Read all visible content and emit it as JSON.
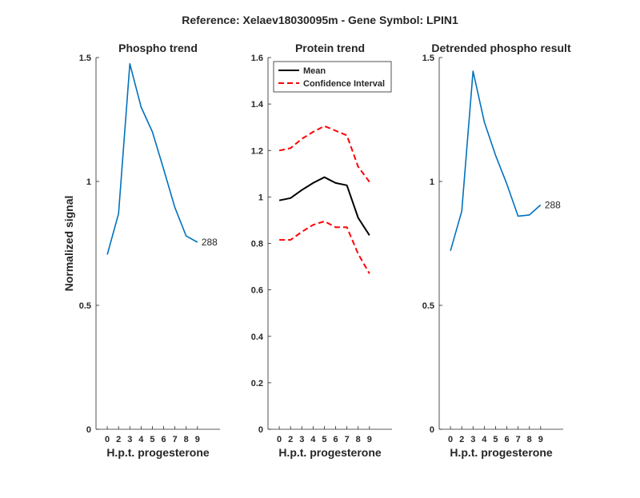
{
  "figure": {
    "title": "Reference:  Xelaev18030095m - Gene Symbol:  LPIN1"
  },
  "chart_data": [
    {
      "type": "line",
      "title": "Phospho trend",
      "xlabel": "H.p.t. progesterone",
      "ylabel": "Normalized signal",
      "x": [
        0,
        2,
        3,
        4,
        5,
        6,
        7,
        8,
        9
      ],
      "ylim": [
        0,
        1.5
      ],
      "yticks": [
        0,
        0.5,
        1,
        1.5
      ],
      "ytick_labels": [
        "0",
        "0.5",
        "1",
        "1.5"
      ],
      "series": [
        {
          "values": [
            0.705,
            0.87,
            1.475,
            1.3,
            1.2,
            1.05,
            0.895,
            0.78,
            0.755
          ],
          "color": "#0072BD",
          "style": "solid"
        }
      ],
      "end_label": "288"
    },
    {
      "type": "line",
      "title": "Protein trend",
      "xlabel": "H.p.t. progesterone",
      "ylabel": "",
      "x": [
        0,
        2,
        3,
        4,
        5,
        6,
        7,
        8,
        9
      ],
      "ylim": [
        0,
        1.6
      ],
      "yticks": [
        0,
        0.2,
        0.4,
        0.6,
        0.8,
        1,
        1.2,
        1.4,
        1.6
      ],
      "ytick_labels": [
        "0",
        "0.2",
        "0.4",
        "0.6",
        "0.8",
        "1",
        "1.2",
        "1.4",
        "1.6"
      ],
      "legend_position": "top-left",
      "series": [
        {
          "name": "Mean",
          "values": [
            0.985,
            0.995,
            1.03,
            1.06,
            1.085,
            1.06,
            1.05,
            0.91,
            0.835
          ],
          "color": "#000000",
          "style": "solid"
        },
        {
          "name": "Confidence Interval",
          "values": [
            1.2,
            1.21,
            1.25,
            1.28,
            1.305,
            1.285,
            1.265,
            1.13,
            1.065
          ],
          "color": "#FF0000",
          "style": "dashed"
        },
        {
          "values": [
            0.815,
            0.815,
            0.85,
            0.88,
            0.895,
            0.87,
            0.87,
            0.755,
            0.67
          ],
          "color": "#FF0000",
          "style": "dashed"
        }
      ]
    },
    {
      "type": "line",
      "title": "Detrended phospho result",
      "xlabel": "H.p.t. progesterone",
      "ylabel": "",
      "x": [
        0,
        2,
        3,
        4,
        5,
        6,
        7,
        8,
        9
      ],
      "ylim": [
        0,
        1.5
      ],
      "yticks": [
        0,
        0.5,
        1,
        1.5
      ],
      "ytick_labels": [
        "0",
        "0.5",
        "1",
        "1.5"
      ],
      "series": [
        {
          "values": [
            0.72,
            0.88,
            1.445,
            1.24,
            1.105,
            0.99,
            0.86,
            0.865,
            0.905
          ],
          "color": "#0072BD",
          "style": "solid"
        }
      ],
      "end_label": "288"
    }
  ]
}
